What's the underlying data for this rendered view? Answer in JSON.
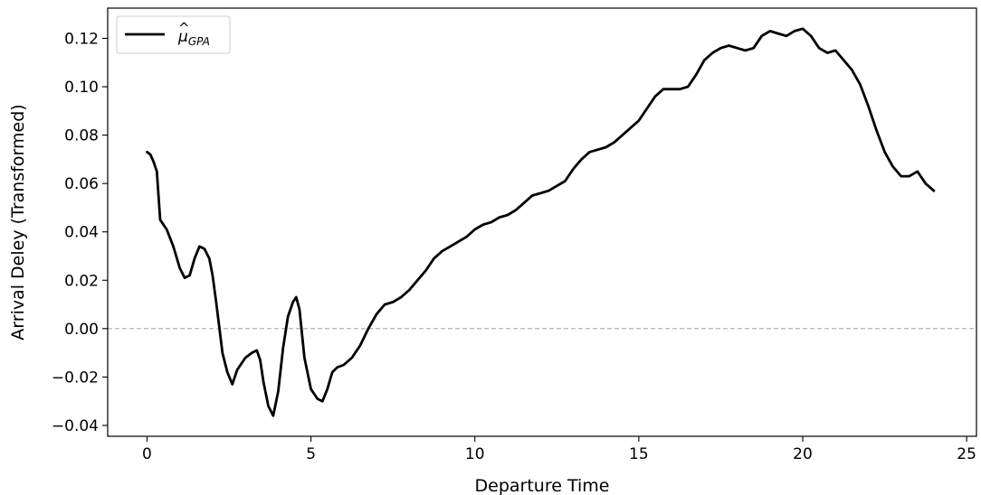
{
  "chart_data": {
    "type": "line",
    "xlabel": "Departure Time",
    "ylabel": "Arrival Deley (Transformed)",
    "xlim": [
      -1.2,
      25.3
    ],
    "ylim": [
      -0.0445,
      0.1325
    ],
    "xticks": [
      0,
      5,
      10,
      15,
      20,
      25
    ],
    "xtick_labels": [
      "0",
      "5",
      "10",
      "15",
      "20",
      "25"
    ],
    "yticks": [
      -0.04,
      -0.02,
      0.0,
      0.02,
      0.04,
      0.06,
      0.08,
      0.1,
      0.12
    ],
    "ytick_labels": [
      "−0.04",
      "−0.02",
      "0.00",
      "0.02",
      "0.04",
      "0.06",
      "0.08",
      "0.10",
      "0.12"
    ],
    "grid": false,
    "legend_position": "top-left",
    "reference_line": {
      "y": 0.0,
      "style": "dashed",
      "color": "#aaaaaa"
    },
    "series": [
      {
        "name": "μ̂ GPA",
        "legend_main": "μ",
        "legend_sub": "GPA",
        "color": "#000000",
        "x": [
          0.0,
          0.1,
          0.2,
          0.3,
          0.4,
          0.5,
          0.6,
          0.8,
          1.0,
          1.15,
          1.3,
          1.45,
          1.6,
          1.75,
          1.9,
          2.0,
          2.1,
          2.2,
          2.3,
          2.45,
          2.6,
          2.75,
          3.0,
          3.2,
          3.35,
          3.45,
          3.55,
          3.7,
          3.85,
          4.0,
          4.15,
          4.3,
          4.45,
          4.55,
          4.65,
          4.8,
          5.0,
          5.2,
          5.35,
          5.5,
          5.65,
          5.8,
          6.0,
          6.25,
          6.5,
          6.75,
          7.0,
          7.25,
          7.5,
          7.75,
          8.0,
          8.25,
          8.5,
          8.75,
          9.0,
          9.25,
          9.5,
          9.75,
          10.0,
          10.25,
          10.5,
          10.75,
          11.0,
          11.25,
          11.5,
          11.75,
          12.0,
          12.25,
          12.5,
          12.75,
          13.0,
          13.25,
          13.5,
          13.75,
          14.0,
          14.25,
          14.5,
          14.75,
          15.0,
          15.25,
          15.5,
          15.75,
          16.0,
          16.25,
          16.5,
          16.75,
          17.0,
          17.25,
          17.5,
          17.75,
          18.0,
          18.25,
          18.5,
          18.75,
          19.0,
          19.25,
          19.5,
          19.75,
          20.0,
          20.25,
          20.5,
          20.75,
          21.0,
          21.25,
          21.5,
          21.75,
          22.0,
          22.25,
          22.5,
          22.75,
          23.0,
          23.25,
          23.5,
          23.75,
          24.0
        ],
        "y": [
          0.073,
          0.072,
          0.069,
          0.065,
          0.045,
          0.043,
          0.041,
          0.034,
          0.025,
          0.021,
          0.022,
          0.029,
          0.034,
          0.033,
          0.029,
          0.022,
          0.012,
          0.001,
          -0.01,
          -0.018,
          -0.023,
          -0.017,
          -0.012,
          -0.01,
          -0.009,
          -0.013,
          -0.022,
          -0.032,
          -0.036,
          -0.026,
          -0.008,
          0.005,
          0.011,
          0.013,
          0.008,
          -0.012,
          -0.025,
          -0.029,
          -0.03,
          -0.025,
          -0.018,
          -0.016,
          -0.015,
          -0.012,
          -0.007,
          0.0,
          0.006,
          0.01,
          0.011,
          0.013,
          0.016,
          0.02,
          0.024,
          0.029,
          0.032,
          0.034,
          0.036,
          0.038,
          0.041,
          0.043,
          0.044,
          0.046,
          0.047,
          0.049,
          0.052,
          0.055,
          0.056,
          0.057,
          0.059,
          0.061,
          0.066,
          0.07,
          0.073,
          0.074,
          0.075,
          0.077,
          0.08,
          0.083,
          0.086,
          0.091,
          0.096,
          0.099,
          0.099,
          0.099,
          0.1,
          0.105,
          0.111,
          0.114,
          0.116,
          0.117,
          0.116,
          0.115,
          0.116,
          0.121,
          0.123,
          0.122,
          0.121,
          0.123,
          0.124,
          0.121,
          0.116,
          0.114,
          0.115,
          0.111,
          0.107,
          0.101,
          0.092,
          0.082,
          0.073,
          0.067,
          0.063,
          0.063,
          0.065,
          0.06,
          0.057
        ]
      }
    ]
  }
}
